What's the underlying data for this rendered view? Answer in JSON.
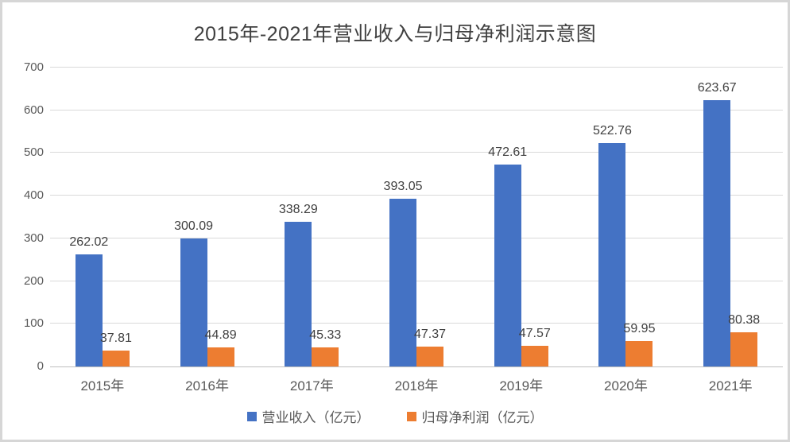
{
  "title": "2015年-2021年营业收入与归母净利润示意图",
  "chart_data": {
    "type": "bar",
    "title": "2015年-2021年营业收入与归母净利润示意图",
    "categories": [
      "2015年",
      "2016年",
      "2017年",
      "2018年",
      "2019年",
      "2020年",
      "2021年"
    ],
    "series": [
      {
        "name": "营业收入（亿元）",
        "color": "#4472C4",
        "values": [
          262.02,
          300.09,
          338.29,
          393.05,
          472.61,
          522.76,
          623.67
        ]
      },
      {
        "name": "归母净利润（亿元）",
        "color": "#ED7D31",
        "values": [
          37.81,
          44.89,
          45.33,
          47.37,
          47.57,
          59.95,
          80.38
        ]
      }
    ],
    "ylim": [
      0,
      700
    ],
    "ytick_step": 100,
    "yticks": [
      0,
      100,
      200,
      300,
      400,
      500,
      600,
      700
    ],
    "grid": true,
    "data_labels": true,
    "legend_position": "bottom"
  },
  "colors": {
    "gridline": "#d9d9d9",
    "axis_line": "#bfbfbf",
    "axis_text": "#595959",
    "label_text": "#404040",
    "frame_border": "#d6d6d6",
    "background": "#ffffff"
  }
}
